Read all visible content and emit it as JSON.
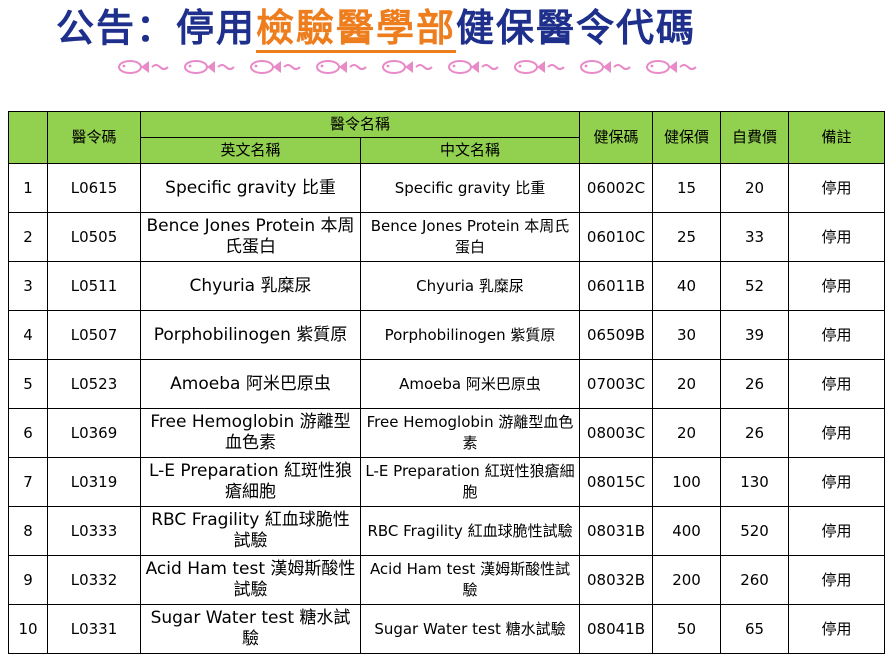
{
  "header": {
    "title_prefix": "公告：停用",
    "title_highlight": "檢驗醫學部",
    "title_suffix": "健保醫令代碼"
  },
  "colors": {
    "title": "#1e2f8c",
    "highlight": "#ee7d1d",
    "header_bg": "#92d050",
    "fish": "#e88ac7"
  },
  "decoration_icon": "fish-icon",
  "table": {
    "headers": {
      "index": "",
      "code": "醫令碼",
      "name_group": "醫令名稱",
      "name_en": "英文名稱",
      "name_zh": "中文名稱",
      "nhi_code": "健保碼",
      "nhi_price": "健保價",
      "self_price": "自費價",
      "note": "備註"
    },
    "rows": [
      {
        "no": "1",
        "code": "L0615",
        "en": "Specific gravity 比重",
        "zh": "Specific gravity 比重",
        "nhi": "06002C",
        "price": "15",
        "self": "20",
        "note": "停用"
      },
      {
        "no": "2",
        "code": "L0505",
        "en": "Bence Jones Protein 本周氏蛋白",
        "zh": "Bence Jones Protein 本周氏蛋白",
        "nhi": "06010C",
        "price": "25",
        "self": "33",
        "note": "停用"
      },
      {
        "no": "3",
        "code": "L0511",
        "en": "Chyuria 乳糜尿",
        "zh": "Chyuria 乳糜尿",
        "nhi": "06011B",
        "price": "40",
        "self": "52",
        "note": "停用"
      },
      {
        "no": "4",
        "code": "L0507",
        "en": "Porphobilinogen 紫質原",
        "zh": "Porphobilinogen 紫質原",
        "nhi": "06509B",
        "price": "30",
        "self": "39",
        "note": "停用"
      },
      {
        "no": "5",
        "code": "L0523",
        "en": "Amoeba 阿米巴原虫",
        "zh": "Amoeba 阿米巴原虫",
        "nhi": "07003C",
        "price": "20",
        "self": "26",
        "note": "停用"
      },
      {
        "no": "6",
        "code": "L0369",
        "en": "Free Hemoglobin 游離型血色素",
        "zh": "Free Hemoglobin 游離型血色素",
        "nhi": "08003C",
        "price": "20",
        "self": "26",
        "note": "停用"
      },
      {
        "no": "7",
        "code": "L0319",
        "en": "L-E Preparation 紅斑性狼瘡細胞",
        "zh": "L-E Preparation 紅斑性狼瘡細胞",
        "nhi": "08015C",
        "price": "100",
        "self": "130",
        "note": "停用"
      },
      {
        "no": "8",
        "code": "L0333",
        "en": "RBC Fragility 紅血球脆性試驗",
        "zh": "RBC Fragility 紅血球脆性試驗",
        "nhi": "08031B",
        "price": "400",
        "self": "520",
        "note": "停用"
      },
      {
        "no": "9",
        "code": "L0332",
        "en": "Acid Ham test 漢姆斯酸性試驗",
        "zh": "Acid Ham test 漢姆斯酸性試驗",
        "nhi": "08032B",
        "price": "200",
        "self": "260",
        "note": "停用"
      },
      {
        "no": "10",
        "code": "L0331",
        "en": "Sugar Water test 糖水試驗",
        "zh": "Sugar Water test 糖水試驗",
        "nhi": "08041B",
        "price": "50",
        "self": "65",
        "note": "停用"
      }
    ]
  }
}
